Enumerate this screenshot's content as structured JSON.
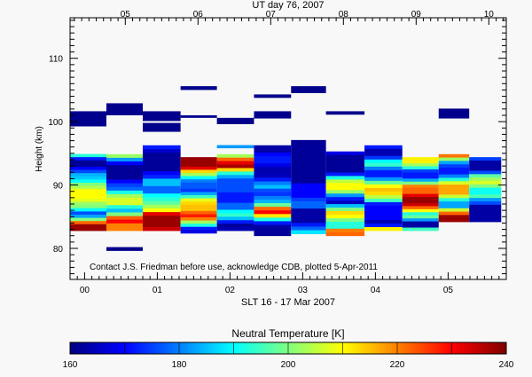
{
  "chart_data": {
    "type": "heatmap",
    "title": "UT day 76, 2007",
    "xlabel": "SLT 16 - 17 Mar 2007",
    "ylabel": "Height (km)",
    "xlim": [
      -0.2,
      5.8
    ],
    "ylim": [
      75.1,
      116.4
    ],
    "x_ticks": [
      "00",
      "01",
      "02",
      "03",
      "04",
      "05"
    ],
    "x_tick_values": [
      0,
      1,
      2,
      3,
      4,
      5
    ],
    "top_axis": {
      "ticks": [
        "05",
        "06",
        "07",
        "08",
        "09",
        "10"
      ],
      "tick_values": [
        5,
        6,
        7,
        8,
        9,
        10
      ],
      "ut_minus_slt": 4.44
    },
    "y_ticks": [
      "80",
      "90",
      "100",
      "110"
    ],
    "y_tick_values": [
      80,
      90,
      100,
      110
    ],
    "annotation": "Contact J.S. Friedman before use, acknowledge CDB, plotted 5-Apr-2011",
    "colorbar": {
      "title": "Neutral Temperature [K]",
      "range": [
        160,
        240
      ],
      "tick_labels": [
        "160",
        "180",
        "200",
        "220",
        "240"
      ],
      "tick_values": [
        160,
        180,
        200,
        220,
        240
      ],
      "stops": [
        [
          160,
          "#00007f"
        ],
        [
          170,
          "#0000ff"
        ],
        [
          180,
          "#007fff"
        ],
        [
          190,
          "#00ffff"
        ],
        [
          200,
          "#80ff80"
        ],
        [
          210,
          "#ffff00"
        ],
        [
          220,
          "#ff8000"
        ],
        [
          230,
          "#ff0000"
        ],
        [
          240,
          "#7f0000"
        ]
      ]
    },
    "columns": [
      {
        "slt": [
          -0.2,
          0.3
        ],
        "height": [
          94.9,
          82.8
        ],
        "temps": [
          193,
          172,
          162,
          162,
          170,
          176,
          184,
          186,
          190,
          200,
          204,
          210,
          210,
          210,
          208,
          202,
          200,
          190,
          176,
          183,
          200,
          222,
          238,
          238
        ]
      },
      {
        "slt": [
          0.3,
          0.8
        ],
        "height": [
          94.87,
          82.8
        ],
        "temps": [
          202,
          182,
          170,
          162,
          162,
          162,
          162,
          170,
          175,
          178,
          192,
          203,
          207,
          207,
          193,
          185,
          200,
          223,
          230,
          220,
          220
        ]
      },
      {
        "slt": [
          0.8,
          1.32
        ],
        "height": [
          96.27,
          82.8
        ],
        "temps": [
          172,
          166,
          162,
          162,
          162,
          162,
          162,
          170,
          173,
          185,
          185,
          178,
          178,
          190,
          193,
          197,
          203,
          210,
          232,
          238,
          238,
          238,
          234
        ]
      },
      {
        "slt": [
          1.32,
          1.82
        ],
        "height": [
          94.4,
          82.4
        ],
        "temps": [
          238,
          238,
          238,
          232,
          213,
          203,
          190,
          180,
          177,
          177,
          174,
          183,
          195,
          208,
          213,
          215,
          215,
          222,
          228,
          220,
          203,
          192,
          172,
          168
        ]
      },
      {
        "slt": [
          1.82,
          2.33
        ],
        "height": [
          94.87,
          82.8
        ],
        "temps": [
          203,
          222,
          232,
          237,
          213,
          193,
          183,
          176,
          176,
          176,
          176,
          172,
          172,
          172,
          178,
          178,
          190,
          194,
          185,
          172,
          162,
          164
        ]
      },
      {
        "slt": [
          2.33,
          2.84
        ],
        "height": [
          96.27,
          82.0
        ],
        "temps": [
          163,
          163,
          170,
          172,
          172,
          168,
          164,
          164,
          165,
          172,
          180,
          185,
          176,
          174,
          180,
          184,
          198,
          222,
          230,
          212,
          192,
          172,
          163,
          162,
          162
        ]
      },
      {
        "slt": [
          2.84,
          3.32
        ],
        "height": [
          97.1,
          82.3
        ],
        "temps": [
          162,
          162,
          162,
          162,
          162,
          162,
          162,
          162,
          162,
          162,
          162,
          162,
          170,
          170,
          170,
          170,
          175,
          178,
          178,
          163,
          163,
          163,
          163,
          172,
          178,
          188
        ]
      },
      {
        "slt": [
          3.32,
          3.85
        ],
        "height": [
          95.3,
          82.0
        ],
        "temps": [
          168,
          162,
          162,
          162,
          162,
          162,
          172,
          192,
          205,
          210,
          210,
          202,
          182,
          172,
          165,
          185,
          200,
          213,
          210,
          200,
          193,
          193,
          220,
          222
        ]
      },
      {
        "slt": [
          3.85,
          4.37
        ],
        "height": [
          96.27,
          82.8
        ],
        "temps": [
          172,
          164,
          164,
          174,
          190,
          194,
          180,
          172,
          172,
          182,
          198,
          210,
          215,
          213,
          205,
          195,
          172,
          170,
          170,
          170,
          170,
          164,
          172,
          211
        ]
      },
      {
        "slt": [
          4.37,
          4.87
        ],
        "height": [
          94.4,
          82.8
        ],
        "temps": [
          211,
          211,
          203,
          193,
          175,
          172,
          172,
          183,
          200,
          220,
          222,
          222,
          232,
          238,
          238,
          234,
          222,
          210,
          193,
          198,
          182,
          163,
          163,
          195
        ]
      },
      {
        "slt": [
          4.87,
          5.29
        ],
        "height": [
          94.87,
          84.2
        ],
        "temps": [
          221,
          202,
          183,
          175,
          172,
          172,
          180,
          193,
          207,
          217,
          217,
          217,
          206,
          193,
          183,
          183,
          206,
          222,
          238,
          238
        ]
      },
      {
        "slt": [
          5.29,
          5.73
        ],
        "height": [
          94.4,
          84.2
        ],
        "temps": [
          175,
          163,
          163,
          163,
          176,
          197,
          203,
          207,
          200,
          191,
          191,
          196,
          182,
          176,
          163,
          163,
          163,
          163,
          163
        ]
      }
    ],
    "isolated_cells": [
      {
        "slt": [
          -0.2,
          0.3
        ],
        "height": [
          101.64,
          99.25
        ],
        "temp": 161
      },
      {
        "slt": [
          0.3,
          0.8
        ],
        "height": [
          102.9,
          101.0
        ],
        "temp": 161
      },
      {
        "slt": [
          0.3,
          0.8
        ],
        "height": [
          80.2,
          79.6
        ],
        "temp": 161
      },
      {
        "slt": [
          0.8,
          1.32
        ],
        "height": [
          101.64,
          100.1
        ],
        "temp": 161
      },
      {
        "slt": [
          0.8,
          1.32
        ],
        "height": [
          99.8,
          98.4
        ],
        "temp": 161
      },
      {
        "slt": [
          1.32,
          1.82
        ],
        "height": [
          105.6,
          105.0
        ],
        "temp": 161
      },
      {
        "slt": [
          1.32,
          1.82
        ],
        "height": [
          101.0,
          100.6
        ],
        "temp": 161
      },
      {
        "slt": [
          1.82,
          2.33
        ],
        "height": [
          100.6,
          99.6
        ],
        "temp": 161
      },
      {
        "slt": [
          1.82,
          2.33
        ],
        "height": [
          96.3,
          95.8
        ],
        "temp": 182
      },
      {
        "slt": [
          2.33,
          2.84
        ],
        "height": [
          104.3,
          103.75
        ],
        "temp": 161
      },
      {
        "slt": [
          2.33,
          2.84
        ],
        "height": [
          101.64,
          100.5
        ],
        "temp": 161
      },
      {
        "slt": [
          2.84,
          3.32
        ],
        "height": [
          105.6,
          104.5
        ],
        "temp": 161
      },
      {
        "slt": [
          3.32,
          3.85
        ],
        "height": [
          101.64,
          101.1
        ],
        "temp": 161
      },
      {
        "slt": [
          4.87,
          5.29
        ],
        "height": [
          102.06,
          100.5
        ],
        "temp": 161
      }
    ]
  }
}
